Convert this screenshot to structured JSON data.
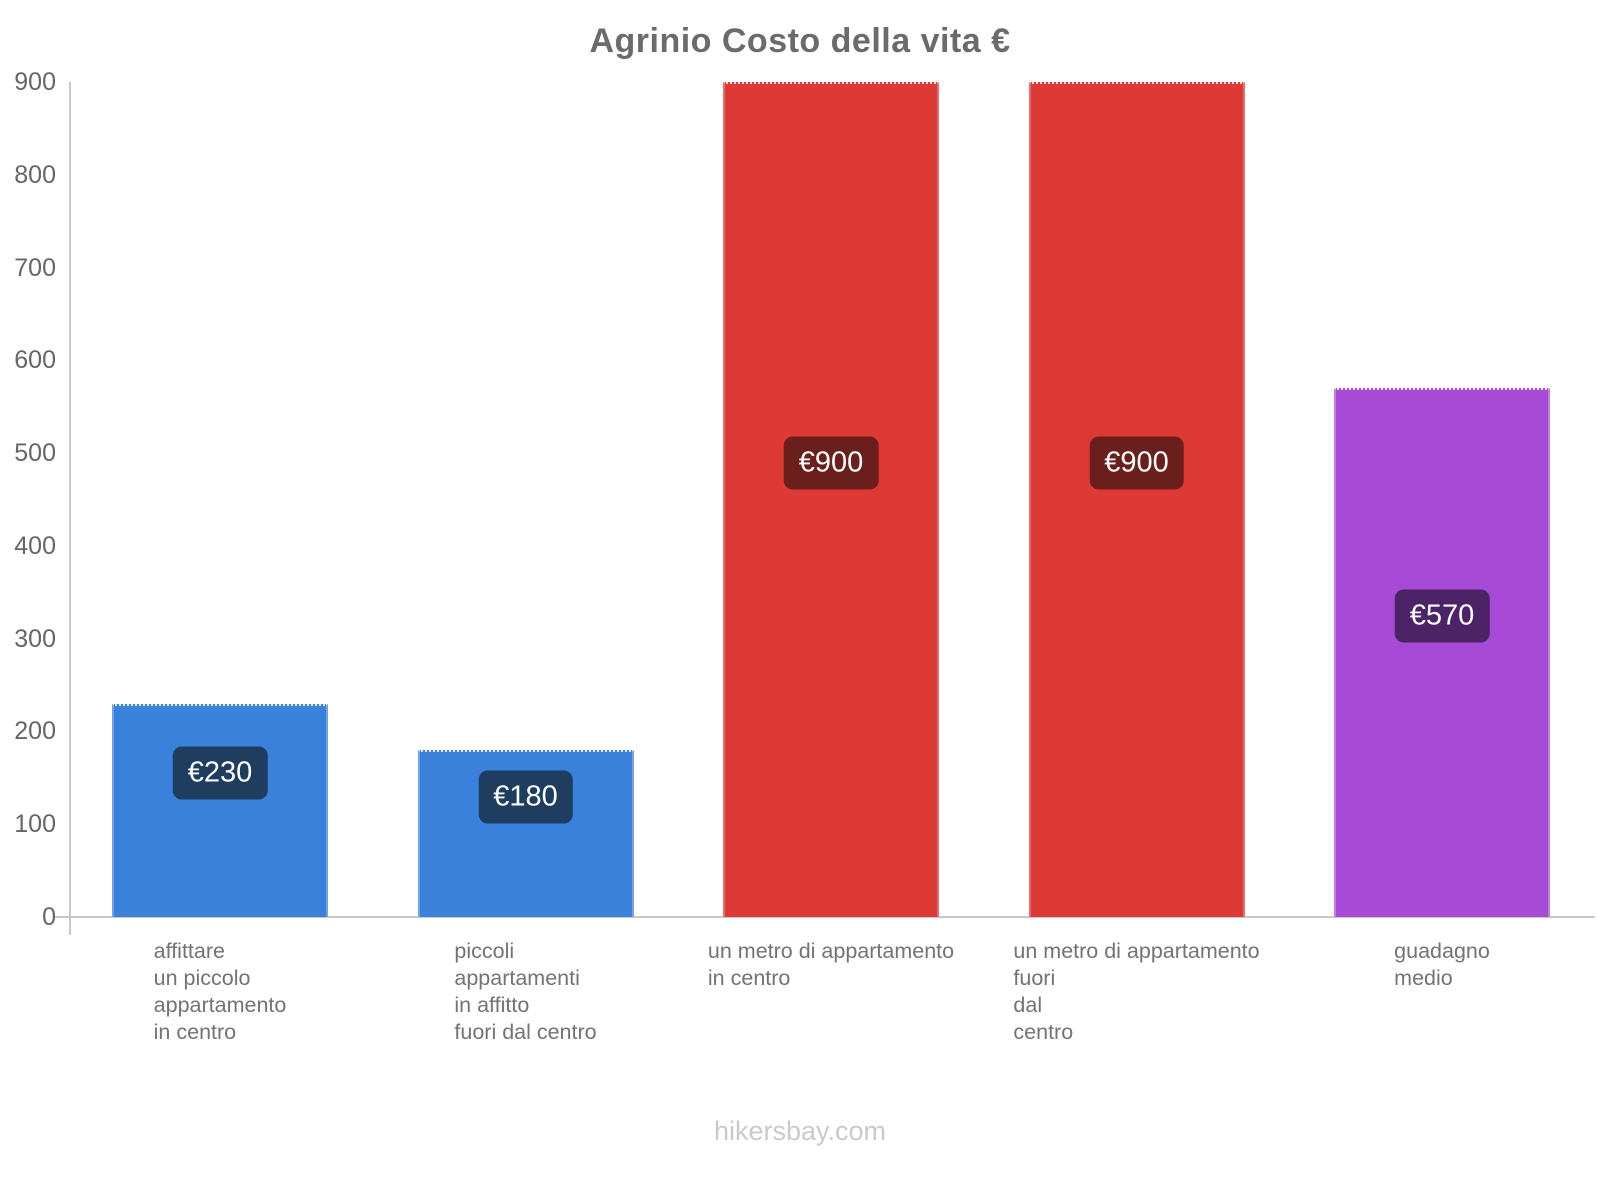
{
  "title": "Agrinio Costo della vita €",
  "footer": "hikersbay.com",
  "chart_data": {
    "type": "bar",
    "title": "Agrinio Costo della vita €",
    "currency_symbol": "€",
    "categories": [
      "affittare\nun piccolo\nappartamento\nin centro",
      "piccoli\nappartamenti\nin affitto\nfuori dal centro",
      "un metro di appartamento\nin centro",
      "un metro di appartamento\nfuori\ndal\ncentro",
      "guadagno\nmedio"
    ],
    "values": [
      230,
      180,
      900,
      900,
      570
    ],
    "value_labels": [
      "€230",
      "€180",
      "€900",
      "€900",
      "€570"
    ],
    "bar_colors": [
      "#3A81DC",
      "#3A81DC",
      "#DE3A35",
      "#DE3A35",
      "#A74BD6"
    ],
    "badge_colors": [
      "#1E3D5F",
      "#1E3D5F",
      "#6A1F1C",
      "#6A1F1C",
      "#4B2366"
    ],
    "ylim": [
      0,
      900
    ],
    "yticks": [
      0,
      100,
      200,
      300,
      400,
      500,
      600,
      700,
      800,
      900
    ],
    "grid": false,
    "legend": false,
    "xlabel": "",
    "ylabel": "",
    "axis_color": "#C8C8C8",
    "tick_text_color": "#666666",
    "category_text_color": "#737373",
    "title_text_color": "#6B6B6B",
    "footer_text_color": "#CACACA"
  }
}
